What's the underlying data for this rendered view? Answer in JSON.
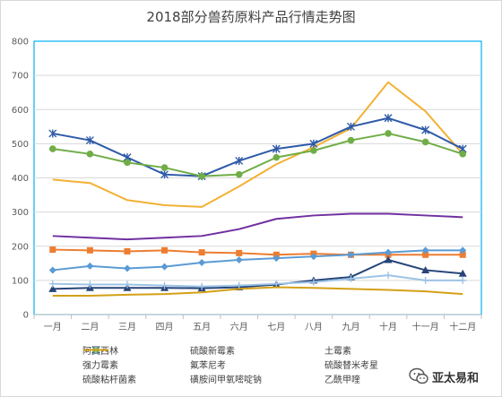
{
  "chart_data": {
    "type": "line",
    "title": "2018部分兽药原料产品行情走势图",
    "categories": [
      "一月",
      "二月",
      "三月",
      "四月",
      "五月",
      "六月",
      "七月",
      "八月",
      "九月",
      "十月",
      "十一月",
      "十二月"
    ],
    "yticks": [
      "0",
      "100",
      "200",
      "300",
      "400",
      "500",
      "600",
      "700",
      "800"
    ],
    "ylim": [
      0,
      800
    ],
    "grid": true,
    "legend_position": "bottom",
    "series": [
      {
        "name": "阿莫西林",
        "color": "#ed7d31",
        "marker": "square",
        "values": [
          190,
          188,
          185,
          188,
          182,
          180,
          175,
          178,
          175,
          175,
          175,
          175
        ]
      },
      {
        "name": "硫酸新霉素",
        "color": "#5b9bd5",
        "marker": "diamond",
        "values": [
          130,
          142,
          135,
          140,
          152,
          160,
          165,
          170,
          175,
          182,
          188,
          188
        ]
      },
      {
        "name": "土霉素",
        "color": "#264478",
        "marker": "triangle",
        "values": [
          75,
          78,
          78,
          78,
          77,
          80,
          88,
          100,
          110,
          160,
          130,
          120
        ]
      },
      {
        "name": "强力霉素",
        "color": "#f2b134",
        "marker": "line",
        "values": [
          395,
          385,
          335,
          320,
          315,
          375,
          440,
          490,
          545,
          680,
          595,
          470
        ]
      },
      {
        "name": "氟苯尼考",
        "color": "#2e5aa8",
        "marker": "star",
        "values": [
          530,
          510,
          460,
          410,
          405,
          450,
          485,
          500,
          550,
          575,
          540,
          485
        ]
      },
      {
        "name": "硫酸替米考星",
        "color": "#70ad47",
        "marker": "circle",
        "values": [
          485,
          470,
          445,
          430,
          405,
          410,
          460,
          480,
          510,
          530,
          505,
          470
        ]
      },
      {
        "name": "硫酸粘杆菌素",
        "color": "#9dc3e6",
        "marker": "plus",
        "values": [
          90,
          88,
          88,
          85,
          82,
          85,
          90,
          95,
          105,
          115,
          100,
          100
        ]
      },
      {
        "name": "磺胺间甲氧嘧啶钠",
        "color": "#7030a0",
        "marker": "line",
        "values": [
          230,
          225,
          220,
          225,
          230,
          250,
          280,
          290,
          295,
          295,
          290,
          285
        ]
      },
      {
        "name": "乙酰甲喹",
        "color": "#d4a017",
        "marker": "line",
        "values": [
          55,
          55,
          58,
          60,
          65,
          75,
          80,
          78,
          75,
          72,
          68,
          60
        ]
      }
    ]
  },
  "watermark": {
    "text": "亚太易和"
  }
}
